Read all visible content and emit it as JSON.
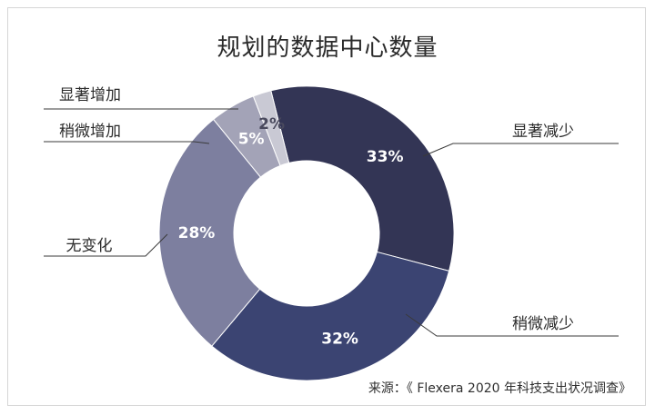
{
  "chart_data": {
    "type": "pie",
    "title": "规划的数据中心数量",
    "source": "来源：《 Flexera 2020 年科技支出状况调查》",
    "slices": [
      {
        "label": "显著减少",
        "value": 33,
        "value_label": "33%",
        "color": "#333555"
      },
      {
        "label": "稍微减少",
        "value": 32,
        "value_label": "32%",
        "color": "#3b4472"
      },
      {
        "label": "无变化",
        "value": 28,
        "value_label": "28%",
        "color": "#7d7f9f"
      },
      {
        "label": "稍微增加",
        "value": 5,
        "value_label": "5%",
        "color": "#a3a3b7"
      },
      {
        "label": "显著增加",
        "value": 2,
        "value_label": "2%",
        "color": "#c9c9d4"
      }
    ]
  }
}
